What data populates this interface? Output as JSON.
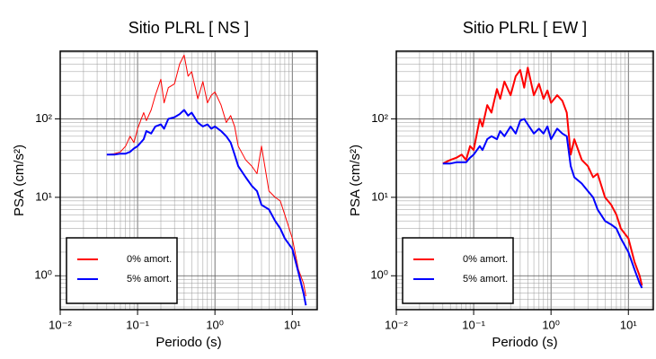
{
  "chart_data": [
    {
      "type": "line",
      "title": "Sitio PLRL [ NS ]",
      "xlabel": "Periodo (s)",
      "ylabel": "PSA (cm/s²)",
      "xscale": "log",
      "yscale": "log",
      "grid": true,
      "legend": "lower left",
      "xlim": [
        0.01,
        21
      ],
      "ylim": [
        0.37,
        730
      ],
      "xticks": [
        {
          "value": 0.01,
          "label": "10⁻²"
        },
        {
          "value": 0.1,
          "label": "10⁻¹"
        },
        {
          "value": 1,
          "label": "10⁰"
        },
        {
          "value": 10,
          "label": "10¹"
        }
      ],
      "yticks": [
        {
          "value": 1,
          "label": "10⁰"
        },
        {
          "value": 10,
          "label": "10¹"
        },
        {
          "value": 100,
          "label": "10²"
        }
      ],
      "x": [
        0.04,
        0.05,
        0.06,
        0.07,
        0.08,
        0.09,
        0.1,
        0.12,
        0.13,
        0.15,
        0.17,
        0.2,
        0.22,
        0.25,
        0.3,
        0.35,
        0.4,
        0.45,
        0.5,
        0.6,
        0.7,
        0.8,
        0.9,
        1.0,
        1.2,
        1.4,
        1.6,
        1.8,
        2.0,
        2.5,
        3,
        3.5,
        4,
        5,
        6,
        7,
        8,
        10,
        12,
        14,
        15
      ],
      "series": [
        {
          "name": "0% amort.",
          "color": "#ff0000",
          "width": 1,
          "values": [
            35,
            36,
            38,
            45,
            60,
            50,
            75,
            120,
            95,
            130,
            200,
            320,
            160,
            250,
            280,
            500,
            650,
            350,
            400,
            180,
            300,
            160,
            200,
            220,
            150,
            90,
            110,
            80,
            45,
            30,
            25,
            20,
            45,
            12,
            10,
            9,
            6,
            3,
            1.2,
            0.8,
            0.55
          ]
        },
        {
          "name": "5% amort.",
          "color": "#0000ff",
          "width": 2,
          "values": [
            35,
            35,
            36,
            36,
            38,
            42,
            45,
            55,
            70,
            65,
            80,
            85,
            75,
            100,
            105,
            115,
            130,
            110,
            120,
            90,
            80,
            85,
            75,
            80,
            70,
            60,
            50,
            35,
            25,
            18,
            14,
            12,
            8,
            7,
            5,
            4,
            3,
            2.2,
            1.1,
            0.6,
            0.42
          ]
        }
      ]
    },
    {
      "type": "line",
      "title": "Sitio PLRL [ EW ]",
      "xlabel": "Periodo (s)",
      "ylabel": "PSA (cm/s²)",
      "xscale": "log",
      "yscale": "log",
      "grid": true,
      "legend": "lower left",
      "xlim": [
        0.01,
        21
      ],
      "ylim": [
        0.37,
        730
      ],
      "xticks": [
        {
          "value": 0.01,
          "label": "10⁻²"
        },
        {
          "value": 0.1,
          "label": "10⁻¹"
        },
        {
          "value": 1,
          "label": "10⁰"
        },
        {
          "value": 10,
          "label": "10¹"
        }
      ],
      "yticks": [
        {
          "value": 1,
          "label": "10⁰"
        },
        {
          "value": 10,
          "label": "10¹"
        },
        {
          "value": 100,
          "label": "10²"
        }
      ],
      "x": [
        0.04,
        0.05,
        0.06,
        0.07,
        0.08,
        0.09,
        0.1,
        0.12,
        0.13,
        0.15,
        0.17,
        0.2,
        0.22,
        0.25,
        0.3,
        0.35,
        0.4,
        0.45,
        0.5,
        0.6,
        0.7,
        0.8,
        0.9,
        1.0,
        1.2,
        1.4,
        1.6,
        1.8,
        2.0,
        2.5,
        3,
        3.5,
        4,
        5,
        6,
        7,
        8,
        10,
        12,
        14,
        15
      ],
      "series": [
        {
          "name": "0% amort.",
          "color": "#ff0000",
          "width": 2,
          "values": [
            27,
            30,
            32,
            35,
            30,
            45,
            40,
            100,
            80,
            150,
            120,
            240,
            180,
            300,
            200,
            350,
            420,
            250,
            450,
            200,
            280,
            180,
            230,
            160,
            200,
            170,
            120,
            35,
            55,
            30,
            25,
            18,
            20,
            10,
            8,
            6,
            4,
            3,
            1.5,
            1.0,
            0.75
          ]
        },
        {
          "name": "5% amort.",
          "color": "#0000ff",
          "width": 2,
          "values": [
            27,
            27,
            28,
            28,
            28,
            32,
            35,
            45,
            40,
            55,
            60,
            55,
            70,
            60,
            80,
            65,
            95,
            100,
            85,
            65,
            75,
            65,
            80,
            55,
            75,
            65,
            60,
            25,
            18,
            15,
            12,
            10,
            7,
            5,
            4.5,
            4,
            3,
            2,
            1.2,
            0.8,
            0.7
          ]
        }
      ]
    }
  ]
}
